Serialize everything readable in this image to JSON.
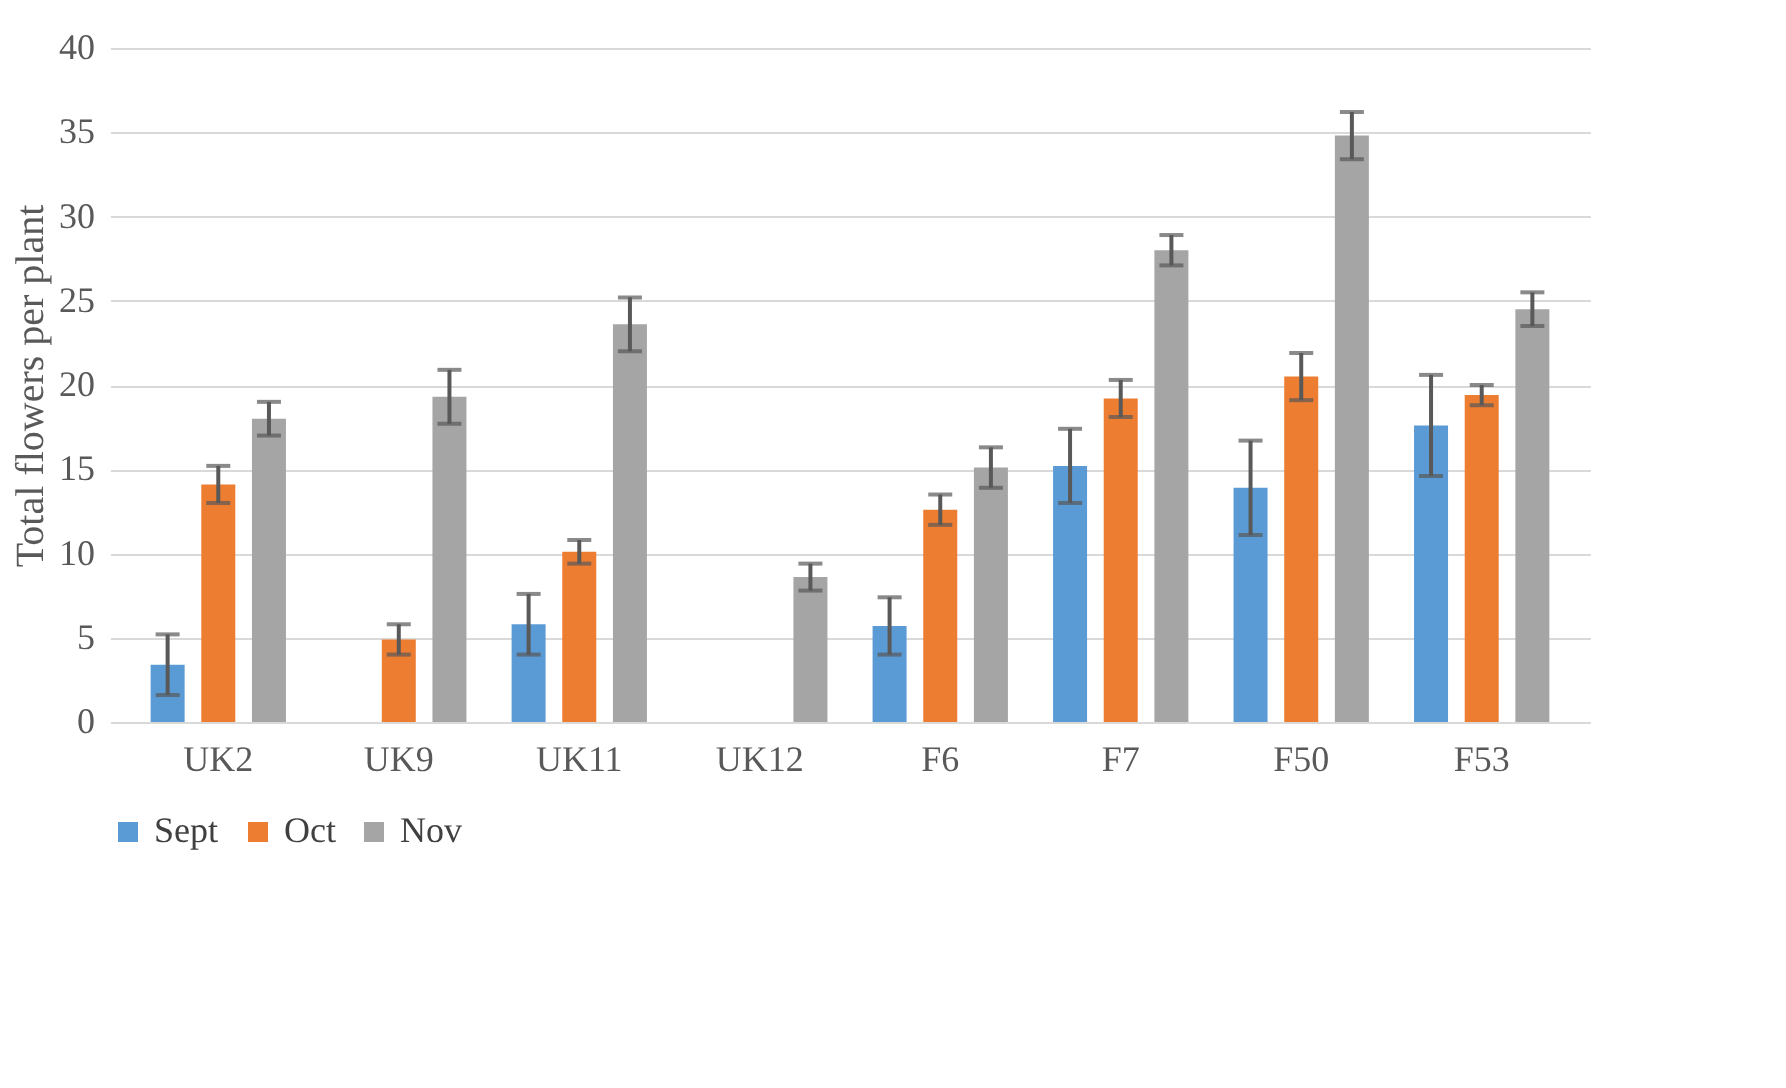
{
  "chart_data": {
    "type": "bar",
    "ylabel": "Total flowers per plant",
    "categories": [
      "UK2",
      "UK9",
      "UK11",
      "UK12",
      "F6",
      "F7",
      "F50",
      "F53"
    ],
    "series": [
      {
        "name": "Sept",
        "color": "#5b9bd5",
        "values": [
          3.4,
          0,
          5.8,
          0,
          5.7,
          15.2,
          13.9,
          17.6
        ],
        "errors": [
          1.8,
          null,
          1.8,
          null,
          1.7,
          2.2,
          2.8,
          3.0
        ]
      },
      {
        "name": "Oct",
        "color": "#ed7d31",
        "values": [
          14.1,
          4.9,
          10.1,
          0,
          12.6,
          19.2,
          20.5,
          19.4
        ],
        "errors": [
          1.1,
          0.9,
          0.7,
          null,
          0.9,
          1.1,
          1.4,
          0.6
        ]
      },
      {
        "name": "Nov",
        "color": "#a5a5a5",
        "values": [
          18.0,
          19.3,
          23.6,
          8.6,
          15.1,
          28.0,
          34.8,
          24.5
        ],
        "errors": [
          1.0,
          1.6,
          1.6,
          0.8,
          1.2,
          0.9,
          1.4,
          1.0
        ]
      }
    ],
    "ylim": [
      0,
      40
    ],
    "yticks": [
      0,
      5,
      10,
      15,
      20,
      25,
      30,
      35,
      40
    ],
    "grid": "y",
    "legend": "bottom"
  }
}
